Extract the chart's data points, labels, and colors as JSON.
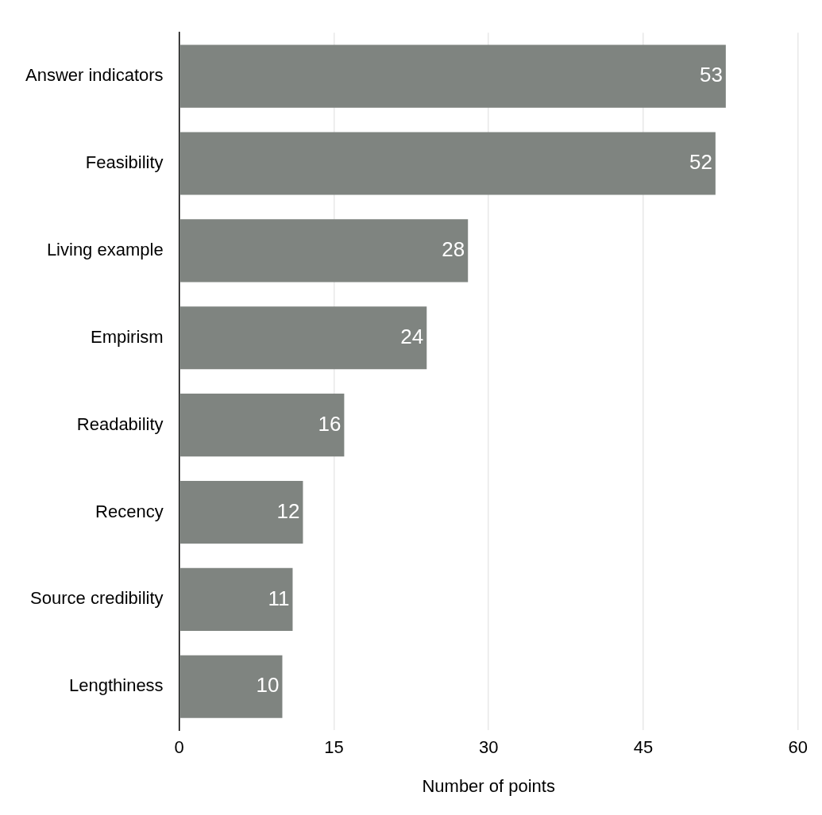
{
  "chart_data": {
    "type": "bar",
    "orientation": "horizontal",
    "xlabel": "Number of points",
    "categories": [
      "Answer indicators",
      "Feasibility",
      "Living example",
      "Empirism",
      "Readability",
      "Recency",
      "Source credibility",
      "Lengthiness"
    ],
    "values": [
      53,
      52,
      28,
      24,
      16,
      12,
      11,
      10
    ],
    "color": "#7f8480",
    "xlim": [
      0,
      60
    ],
    "xticks": [
      0,
      15,
      30,
      45,
      60
    ],
    "grid": "x",
    "data_labels": true,
    "legend": false
  }
}
